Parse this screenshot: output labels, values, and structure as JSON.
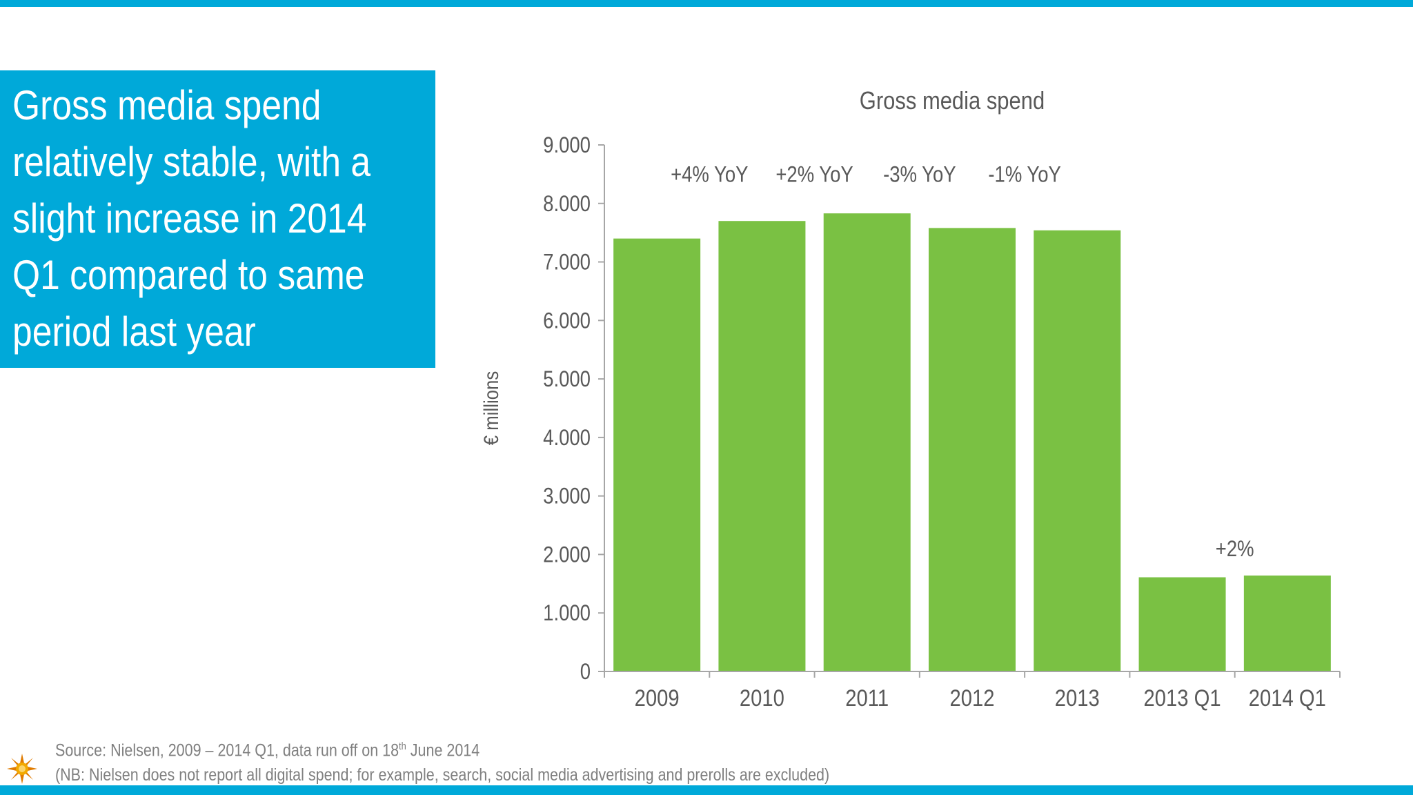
{
  "headline": "Gross media spend relatively stable, with a slight increase in 2014 Q1 compared to same period last year",
  "colors": {
    "accent": "#00a9d9",
    "bar": "#7ac143",
    "text": "#595959",
    "axis": "#a6a6a6"
  },
  "chart_data": {
    "type": "bar",
    "title": "Gross media spend",
    "xlabel": "",
    "ylabel": "€ millions",
    "ylim": [
      0,
      9000
    ],
    "yticks": [
      0,
      1000,
      2000,
      3000,
      4000,
      5000,
      6000,
      7000,
      8000,
      9000
    ],
    "ytick_labels": [
      "0",
      "1.000",
      "2.000",
      "3.000",
      "4.000",
      "5.000",
      "6.000",
      "7.000",
      "8.000",
      "9.000"
    ],
    "categories": [
      "2009",
      "2010",
      "2011",
      "2012",
      "2013",
      "2013 Q1",
      "2014 Q1"
    ],
    "values": [
      7400,
      7700,
      7830,
      7580,
      7540,
      1610,
      1640
    ],
    "grid": false,
    "annotations": [
      {
        "text": "+4% YoY",
        "between": [
          "2009",
          "2010"
        ]
      },
      {
        "text": "+2% YoY",
        "between": [
          "2010",
          "2011"
        ]
      },
      {
        "text": "-3% YoY",
        "between": [
          "2011",
          "2012"
        ]
      },
      {
        "text": "-1% YoY",
        "between": [
          "2012",
          "2013"
        ]
      },
      {
        "text": "+2%",
        "between": [
          "2013 Q1",
          "2014 Q1"
        ]
      }
    ]
  },
  "footer": {
    "source_prefix": "Source: Nielsen, 2009 – 2014 Q1, data run off on 18",
    "source_sup": "th",
    "source_suffix": " June 2014",
    "note": "(NB: Nielsen does not report all digital spend; for example, search, social media advertising and prerolls are excluded)"
  },
  "logo_icon": "sun-logo-icon"
}
